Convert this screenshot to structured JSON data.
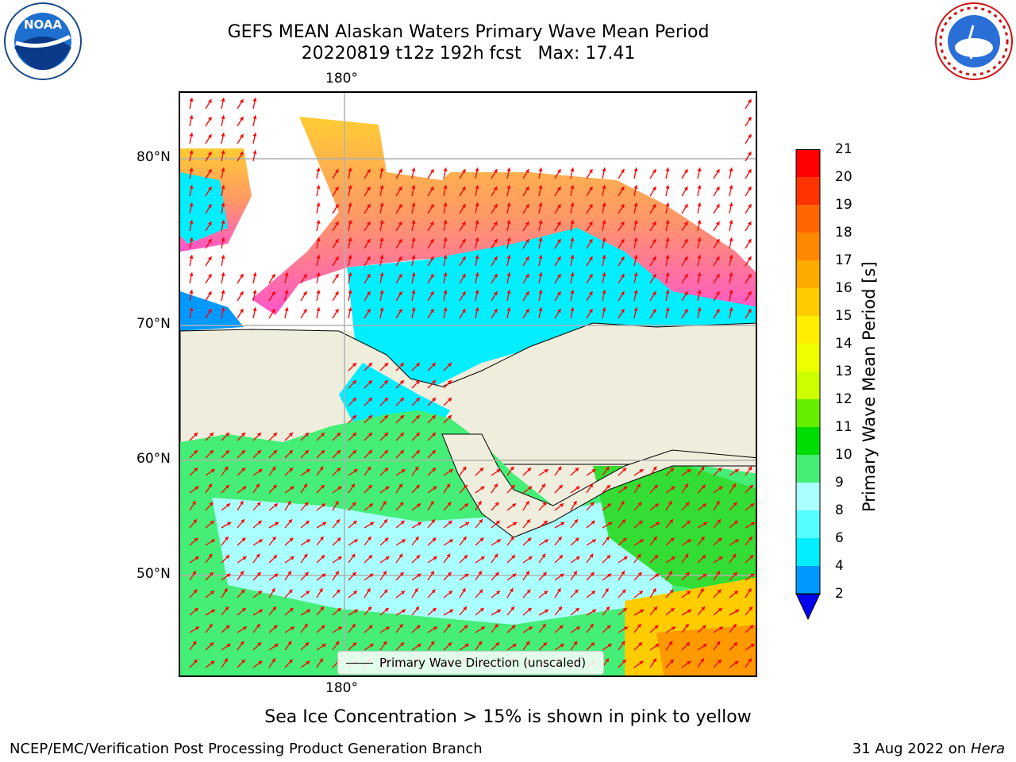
{
  "header": {
    "title_line1": "GEFS MEAN Alaskan Waters Primary Wave Mean Period",
    "title_line2": "20220819 t12z 192h fcst   Max: 17.41"
  },
  "logos": {
    "left": "NOAA",
    "right": "NATIONAL WEATHER SERVICE"
  },
  "map": {
    "top_label": "180°",
    "bottom_label": "180°",
    "lat_labels": [
      "80°N",
      "70°N",
      "60°N",
      "50°N"
    ],
    "legend_label": "Primary Wave Direction (unscaled)",
    "land_color": "#efeddc"
  },
  "colorbar": {
    "label": "Primary Wave Mean Period [s]",
    "ticks": [
      "21",
      "20",
      "19",
      "18",
      "17",
      "16",
      "15",
      "14",
      "13",
      "12",
      "11",
      "10",
      "9",
      "8",
      "6",
      "4",
      "2"
    ],
    "colors": [
      "#ff0000",
      "#ff3300",
      "#ff6600",
      "#ff8800",
      "#ffaa00",
      "#ffcc00",
      "#ffee00",
      "#eeff00",
      "#ccff00",
      "#66ee00",
      "#00dd00",
      "#44ee77",
      "#aaffff",
      "#55ffff",
      "#00eeff",
      "#0099ff",
      "#0000ee"
    ]
  },
  "captions": {
    "ice_note": "Sea Ice Concentration > 15% is shown in pink to yellow",
    "branch": "NCEP/EMC/Verification Post Processing Product Generation Branch",
    "date_prefix": "31 Aug 2022 on ",
    "date_machine": "Hera"
  }
}
